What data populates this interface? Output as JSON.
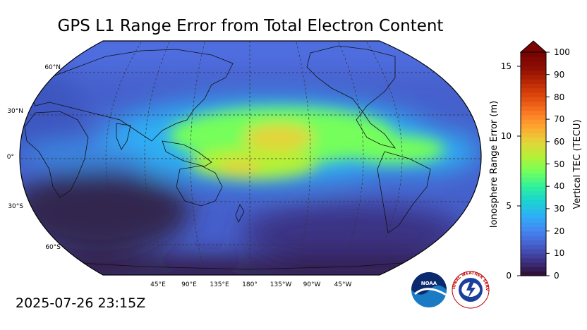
{
  "title": "GPS L1 Range Error from Total Electron Content",
  "timestamp": "2025-07-26 23:15Z",
  "map": {
    "lat_labels": [
      "60°N",
      "30°N",
      "0°",
      "30°S",
      "60°S"
    ],
    "lon_labels": [
      "45°E",
      "90°E",
      "135°E",
      "180°",
      "135°W",
      "90°W",
      "45°W"
    ]
  },
  "colorbar": {
    "left_label": "Ionosphere Range Error (m)",
    "right_label": "Vertical TEC (TECU)",
    "left_ticks": [
      "0",
      "5",
      "10",
      "15"
    ],
    "right_ticks": [
      "0",
      "10",
      "20",
      "30",
      "40",
      "50",
      "60",
      "70",
      "80",
      "90",
      "100"
    ],
    "colors": [
      "#30123b",
      "#3e378f",
      "#4660cc",
      "#4488f3",
      "#2db1f5",
      "#1ad4d0",
      "#2ff29b",
      "#75fe5c",
      "#b3f236",
      "#e2d53a",
      "#fea82f",
      "#fb7b24",
      "#e24d0f",
      "#c02c05",
      "#901003",
      "#7a0403"
    ]
  },
  "logos": {
    "noaa_text": "NOAA",
    "nws_text": "NATIONAL WEATHER SERVICE"
  }
}
